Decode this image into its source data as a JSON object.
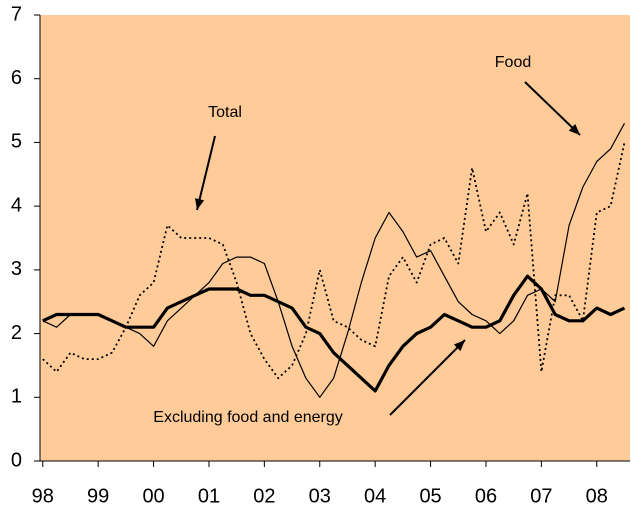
{
  "chart_data": {
    "type": "line",
    "x": [
      1998,
      1998.25,
      1998.5,
      1998.75,
      1999,
      1999.25,
      1999.5,
      1999.75,
      2000,
      2000.25,
      2000.5,
      2000.75,
      2001,
      2001.25,
      2001.5,
      2001.75,
      2002,
      2002.25,
      2002.5,
      2002.75,
      2003,
      2003.25,
      2003.5,
      2003.75,
      2004,
      2004.25,
      2004.5,
      2004.75,
      2005,
      2005.25,
      2005.5,
      2005.75,
      2006,
      2006.25,
      2006.5,
      2006.75,
      2007,
      2007.25,
      2007.5,
      2007.75,
      2008,
      2008.25,
      2008.5
    ],
    "series": [
      {
        "name": "Total",
        "color": "#000000",
        "dash": "dotted",
        "width": 1.8,
        "values": [
          1.6,
          1.4,
          1.7,
          1.6,
          1.6,
          1.7,
          2.1,
          2.6,
          2.8,
          3.7,
          3.5,
          3.5,
          3.5,
          3.4,
          2.8,
          2.0,
          1.6,
          1.3,
          1.5,
          2.0,
          3.0,
          2.2,
          2.1,
          1.9,
          1.8,
          2.9,
          3.2,
          2.8,
          3.4,
          3.5,
          3.1,
          4.6,
          3.6,
          3.9,
          3.4,
          4.2,
          1.4,
          2.6,
          2.6,
          2.2,
          3.9,
          4.0,
          5.0
        ]
      },
      {
        "name": "Food",
        "color": "#000000",
        "dash": "solid",
        "width": 1.2,
        "values": [
          2.2,
          2.1,
          2.3,
          2.3,
          2.3,
          2.2,
          2.1,
          2.0,
          1.8,
          2.2,
          2.4,
          2.6,
          2.8,
          3.1,
          3.2,
          3.2,
          3.1,
          2.5,
          1.8,
          1.3,
          1.0,
          1.3,
          2.0,
          2.8,
          3.5,
          3.9,
          3.6,
          3.2,
          3.3,
          2.9,
          2.5,
          2.3,
          2.2,
          2.0,
          2.2,
          2.6,
          2.7,
          2.5,
          3.7,
          4.3,
          4.7,
          4.9,
          5.3
        ]
      },
      {
        "name": "Excluding food and energy",
        "color": "#000000",
        "dash": "solid",
        "width": 3.2,
        "values": [
          2.2,
          2.3,
          2.3,
          2.3,
          2.3,
          2.2,
          2.1,
          2.1,
          2.1,
          2.4,
          2.5,
          2.6,
          2.7,
          2.7,
          2.7,
          2.6,
          2.6,
          2.5,
          2.4,
          2.1,
          2.0,
          1.7,
          1.5,
          1.3,
          1.1,
          1.5,
          1.8,
          2.0,
          2.1,
          2.3,
          2.2,
          2.1,
          2.1,
          2.2,
          2.6,
          2.9,
          2.7,
          2.3,
          2.2,
          2.2,
          2.4,
          2.3,
          2.4
        ]
      }
    ],
    "background": "#ffcc99",
    "xlim": [
      1997.95,
      2008.6
    ],
    "xticks": [
      {
        "value": 1998,
        "label": "98"
      },
      {
        "value": 1999,
        "label": "99"
      },
      {
        "value": 2000,
        "label": "00"
      },
      {
        "value": 2001,
        "label": "01"
      },
      {
        "value": 2002,
        "label": "02"
      },
      {
        "value": 2003,
        "label": "03"
      },
      {
        "value": 2004,
        "label": "04"
      },
      {
        "value": 2005,
        "label": "05"
      },
      {
        "value": 2006,
        "label": "06"
      },
      {
        "value": 2007,
        "label": "07"
      },
      {
        "value": 2008,
        "label": "08"
      }
    ],
    "ylim": [
      0,
      7
    ],
    "yticks": [
      0,
      1,
      2,
      3,
      4,
      5,
      6,
      7
    ],
    "grid": false,
    "annotations": [
      {
        "text": "Total",
        "series": 0
      },
      {
        "text": "Food",
        "series": 1
      },
      {
        "text": "Excluding food and energy",
        "series": 2
      }
    ]
  }
}
